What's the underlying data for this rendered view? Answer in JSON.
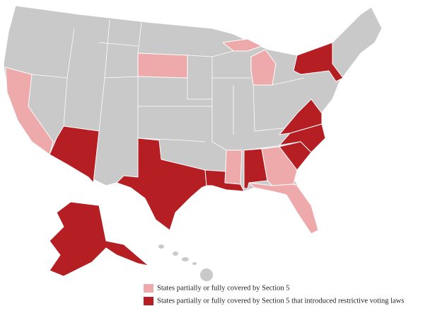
{
  "legend": {
    "items": [
      {
        "label": "States partially or fully covered by Section 5",
        "color": "#eeaaab"
      },
      {
        "label": "States partially or fully covered by Section 5 that introduced restrictive voting laws",
        "color": "#b51f24"
      }
    ]
  }
}
